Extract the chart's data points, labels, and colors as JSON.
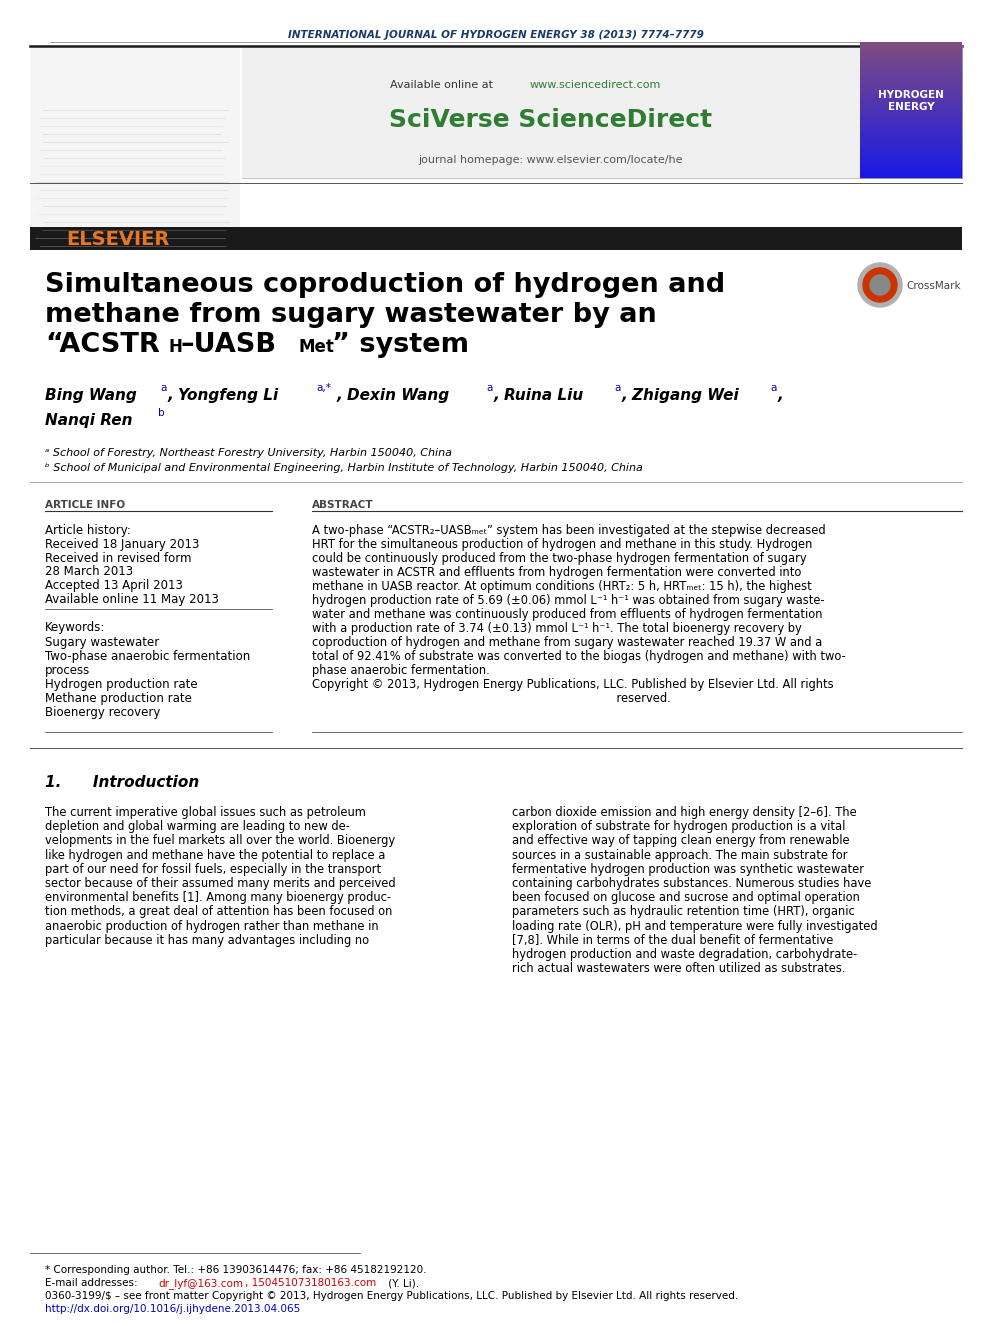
{
  "journal_header": "INTERNATIONAL JOURNAL OF HYDROGEN ENERGY 38 (2013) 7774–7779",
  "journal_header_color": "#1a3a6b",
  "url_color": "#2e7d32",
  "sciverse_color": "#2e7d32",
  "journal_homepage": "journal homepage: www.elsevier.com/locate/he",
  "elsevier_color": "#e87722",
  "title_line1": "Simultaneous coproduction of hydrogen and",
  "title_line2": "methane from sugary wastewater by an",
  "affil_a": "ᵃ School of Forestry, Northeast Forestry University, Harbin 150040, China",
  "affil_b": "ᵇ School of Municipal and Environmental Engineering, Harbin Institute of Technology, Harbin 150040, China",
  "article_info_header": "ARTICLE INFO",
  "abstract_header": "ABSTRACT",
  "article_history_label": "Article history:",
  "received1": "Received 18 January 2013",
  "received2": "Received in revised form",
  "received2b": "28 March 2013",
  "accepted": "Accepted 13 April 2013",
  "available": "Available online 11 May 2013",
  "keywords_label": "Keywords:",
  "kw1": "Sugary wastewater",
  "kw2": "Two-phase anaerobic fermentation",
  "kw2b": "process",
  "kw3": "Hydrogen production rate",
  "kw4": "Methane production rate",
  "kw5": "Bioenergy recovery",
  "intro_header": "1.      Introduction",
  "footnote1": "* Corresponding author. Tel.: +86 13903614476; fax: +86 45182192120.",
  "footnote3": "0360-3199/$ – see front matter Copyright © 2013, Hydrogen Energy Publications, LLC. Published by Elsevier Ltd. All rights reserved.",
  "footnote4": "http://dx.doi.org/10.1016/j.ijhydene.2013.04.065",
  "bg_color": "#ffffff",
  "header_bar_color": "#1a1a1a",
  "gray_box_color": "#f0f0f0"
}
